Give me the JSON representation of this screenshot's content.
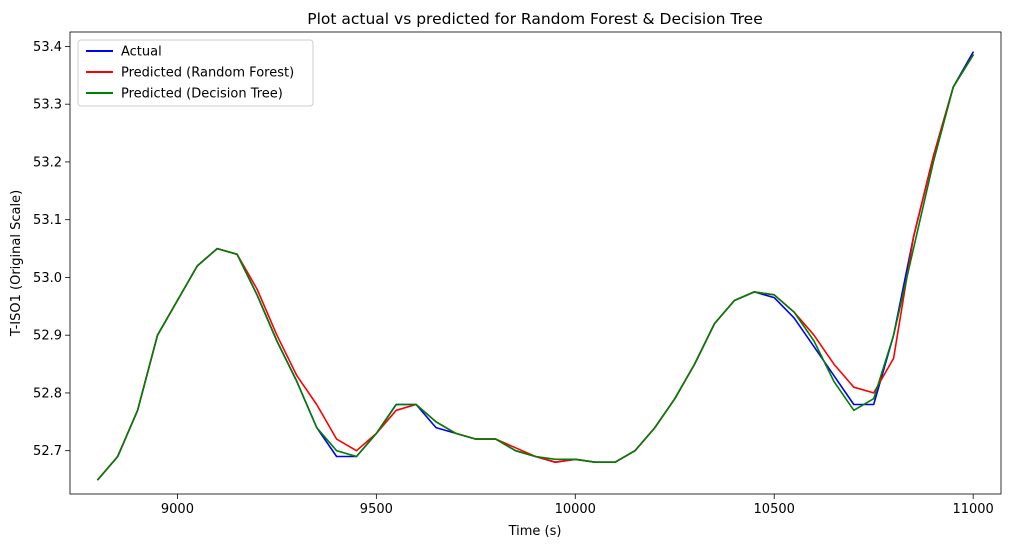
{
  "chart_data": {
    "type": "line",
    "title": "Plot actual vs predicted for Random Forest & Decision Tree",
    "xlabel": "Time (s)",
    "ylabel": "T-ISO1 (Original Scale)",
    "xlim": [
      8730,
      11070
    ],
    "ylim": [
      52.625,
      53.425
    ],
    "xticks": [
      9000,
      9500,
      10000,
      10500,
      11000
    ],
    "xtick_labels": [
      "9000",
      "9500",
      "10000",
      "10500",
      "11000"
    ],
    "yticks": [
      52.7,
      52.8,
      52.9,
      53.0,
      53.1,
      53.2,
      53.3,
      53.4
    ],
    "ytick_labels": [
      "52.7",
      "52.8",
      "52.9",
      "53.0",
      "53.1",
      "53.2",
      "53.3",
      "53.4"
    ],
    "grid": false,
    "legend_position": "top-left",
    "series": [
      {
        "name": "Actual",
        "color": "#0000ff",
        "x": [
          8800,
          8850,
          8900,
          8950,
          9000,
          9050,
          9100,
          9150,
          9200,
          9250,
          9300,
          9350,
          9400,
          9450,
          9500,
          9550,
          9600,
          9650,
          9700,
          9750,
          9800,
          9850,
          9900,
          9950,
          10000,
          10050,
          10100,
          10150,
          10200,
          10250,
          10300,
          10350,
          10400,
          10450,
          10500,
          10550,
          10600,
          10650,
          10700,
          10750,
          10800,
          10850,
          10900,
          10950,
          11000
        ],
        "y": [
          52.65,
          52.69,
          52.77,
          52.9,
          52.96,
          53.02,
          53.05,
          53.04,
          52.97,
          52.89,
          52.82,
          52.74,
          52.69,
          52.69,
          52.73,
          52.78,
          52.78,
          52.74,
          52.73,
          52.72,
          52.72,
          52.7,
          52.69,
          52.68,
          52.685,
          52.68,
          52.68,
          52.7,
          52.74,
          52.79,
          52.85,
          52.92,
          52.96,
          52.975,
          52.965,
          52.93,
          52.88,
          52.83,
          52.78,
          52.78,
          52.9,
          53.07,
          53.21,
          53.33,
          53.39
        ]
      },
      {
        "name": "Predicted (Random Forest)",
        "color": "#ff0000",
        "x": [
          8800,
          8850,
          8900,
          8950,
          9000,
          9050,
          9100,
          9150,
          9200,
          9250,
          9300,
          9350,
          9400,
          9450,
          9500,
          9550,
          9600,
          9650,
          9700,
          9750,
          9800,
          9850,
          9900,
          9950,
          10000,
          10050,
          10100,
          10150,
          10200,
          10250,
          10300,
          10350,
          10400,
          10450,
          10500,
          10550,
          10600,
          10650,
          10700,
          10750,
          10800,
          10850,
          10900,
          10950,
          11000
        ],
        "y": [
          52.65,
          52.69,
          52.77,
          52.9,
          52.96,
          53.02,
          53.05,
          53.04,
          52.98,
          52.9,
          52.83,
          52.78,
          52.72,
          52.7,
          52.73,
          52.77,
          52.78,
          52.75,
          52.73,
          52.72,
          52.72,
          52.705,
          52.69,
          52.68,
          52.685,
          52.68,
          52.68,
          52.7,
          52.74,
          52.79,
          52.85,
          52.92,
          52.96,
          52.975,
          52.97,
          52.94,
          52.9,
          52.85,
          52.81,
          52.8,
          52.86,
          53.07,
          53.21,
          53.33,
          53.385
        ]
      },
      {
        "name": "Predicted (Decision Tree)",
        "color": "#008000",
        "x": [
          8800,
          8850,
          8900,
          8950,
          9000,
          9050,
          9100,
          9150,
          9200,
          9250,
          9300,
          9350,
          9400,
          9450,
          9500,
          9550,
          9600,
          9650,
          9700,
          9750,
          9800,
          9850,
          9900,
          9950,
          10000,
          10050,
          10100,
          10150,
          10200,
          10250,
          10300,
          10350,
          10400,
          10450,
          10500,
          10550,
          10600,
          10650,
          10700,
          10750,
          10800,
          10850,
          10900,
          10950,
          11000
        ],
        "y": [
          52.65,
          52.69,
          52.77,
          52.9,
          52.96,
          53.02,
          53.05,
          53.04,
          52.97,
          52.89,
          52.82,
          52.74,
          52.7,
          52.69,
          52.73,
          52.78,
          52.78,
          52.75,
          52.73,
          52.72,
          52.72,
          52.7,
          52.69,
          52.685,
          52.685,
          52.68,
          52.68,
          52.7,
          52.74,
          52.79,
          52.85,
          52.92,
          52.96,
          52.975,
          52.97,
          52.94,
          52.89,
          52.82,
          52.77,
          52.79,
          52.9,
          53.05,
          53.2,
          53.33,
          53.385
        ]
      }
    ]
  }
}
